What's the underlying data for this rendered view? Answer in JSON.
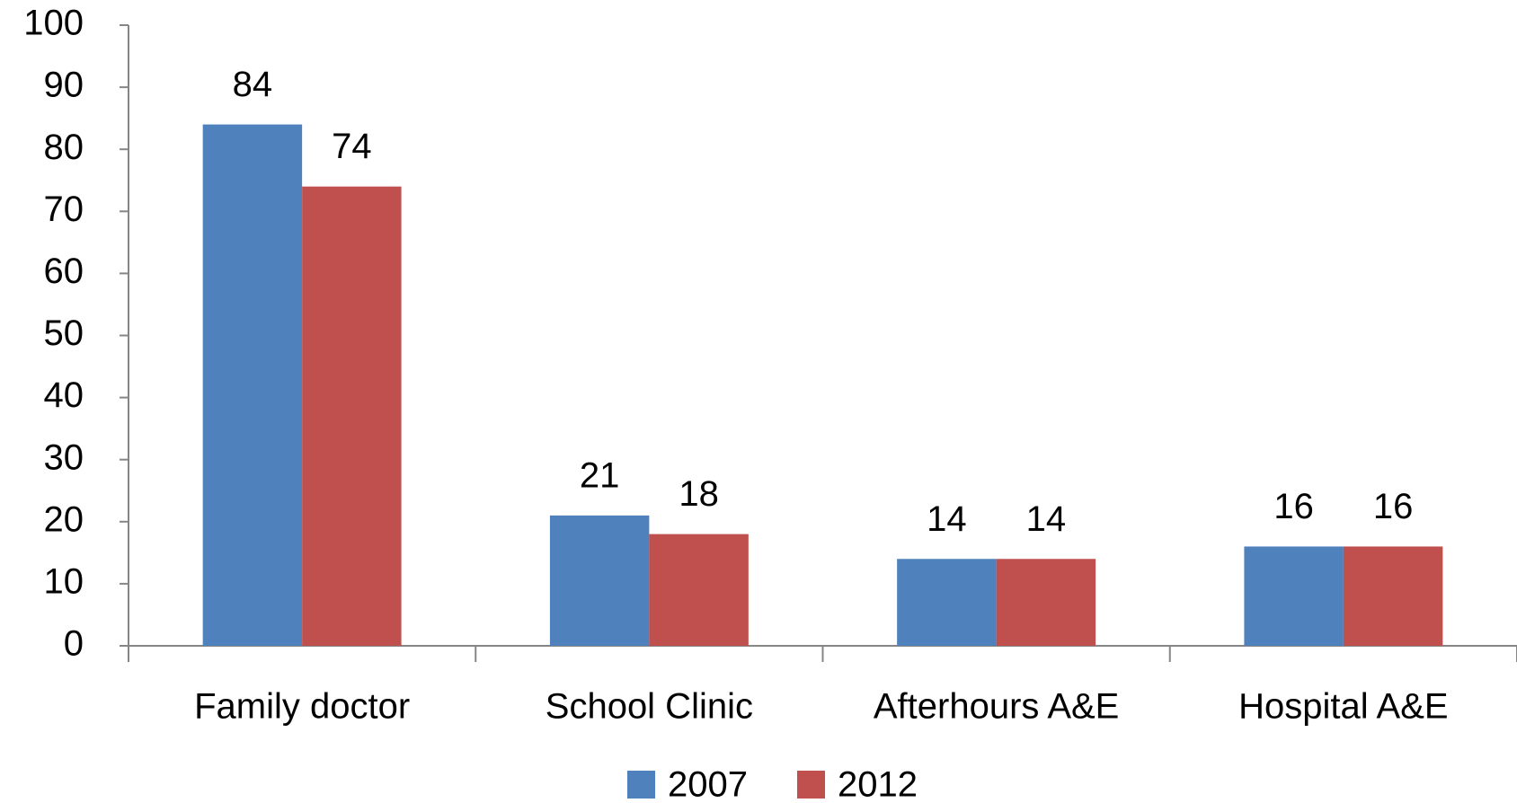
{
  "chart_data": {
    "type": "bar",
    "categories": [
      "Family doctor",
      "School Clinic",
      "Afterhours A&E",
      "Hospital A&E"
    ],
    "series": [
      {
        "name": "2007",
        "color": "#4f81bd",
        "values": [
          84,
          21,
          14,
          16
        ]
      },
      {
        "name": "2012",
        "color": "#c0504d",
        "values": [
          74,
          18,
          14,
          16
        ]
      }
    ],
    "ylim": [
      0,
      100
    ],
    "yticks": [
      0,
      10,
      20,
      30,
      40,
      50,
      60,
      70,
      80,
      90,
      100
    ],
    "legend": "bottom"
  }
}
